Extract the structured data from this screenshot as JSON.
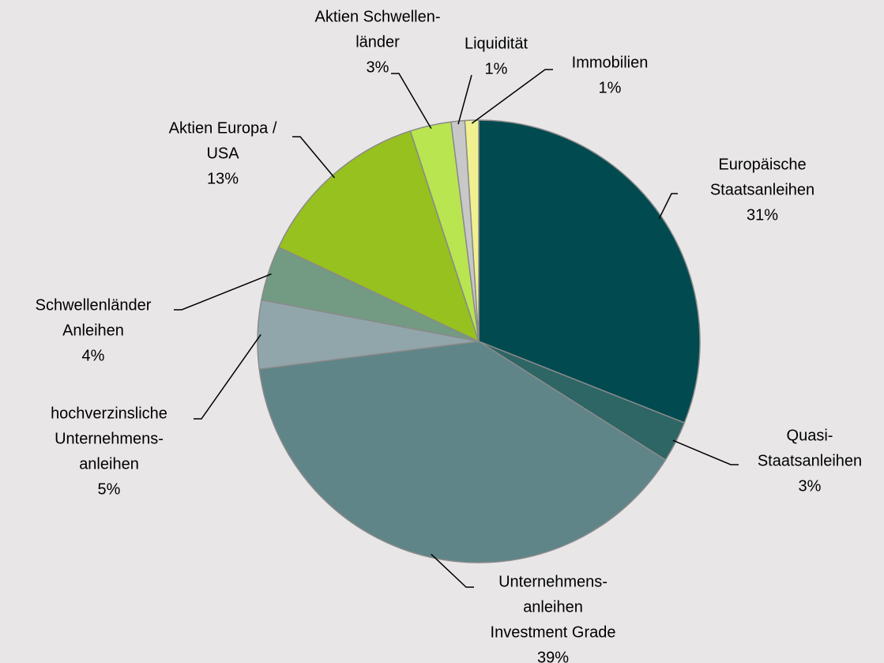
{
  "chart_data": {
    "type": "pie",
    "categories": [
      [
        "Europäische",
        "Staatsanleihen"
      ],
      [
        "Quasi-",
        "Staatsanleihen"
      ],
      [
        "Unternehmens-",
        "anleihen",
        "Investment Grade"
      ],
      [
        "hochverzinsliche",
        "Unternehmens-",
        "anleihen"
      ],
      [
        "Schwellenländer",
        "Anleihen"
      ],
      [
        "Aktien Europa /",
        "USA"
      ],
      [
        "Aktien Schwellen-",
        "länder"
      ],
      [
        "Liquidität"
      ],
      [
        "Immobilien"
      ]
    ],
    "values": [
      31,
      3,
      39,
      5,
      4,
      13,
      3,
      1,
      1
    ],
    "value_labels": [
      "31%",
      "3%",
      "39%",
      "5%",
      "4%",
      "13%",
      "3%",
      "1%",
      "1%"
    ],
    "colors": [
      "#004a50",
      "#2e6565",
      "#5f8589",
      "#91a6ab",
      "#739a82",
      "#96c11f",
      "#b8e550",
      "#c8c8c8",
      "#f0f090"
    ]
  }
}
